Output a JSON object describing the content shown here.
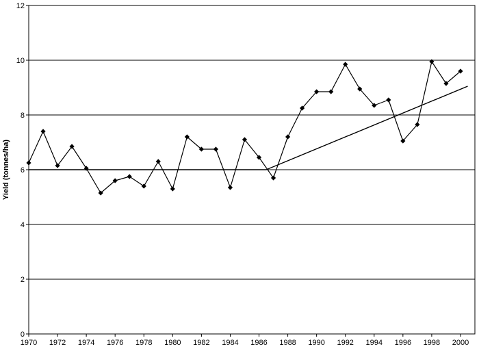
{
  "chart_data": {
    "type": "line",
    "title": "",
    "xlabel": "",
    "ylabel": "Yield (tonnes/ha)",
    "xlim": [
      1970,
      2001
    ],
    "ylim": [
      0,
      12
    ],
    "yticks": [
      0,
      2,
      4,
      6,
      8,
      10,
      12
    ],
    "xticks": [
      1970,
      1972,
      1974,
      1976,
      1978,
      1980,
      1982,
      1984,
      1986,
      1988,
      1990,
      1992,
      1994,
      1996,
      1998,
      2000
    ],
    "grid": "horizontal",
    "legend": "none",
    "series": [
      {
        "style": "line-with-diamond-markers",
        "color": "#000000",
        "x": [
          1970,
          1971,
          1972,
          1973,
          1974,
          1975,
          1976,
          1977,
          1978,
          1979,
          1980,
          1981,
          1982,
          1983,
          1984,
          1985,
          1986,
          1987,
          1988,
          1989,
          1990,
          1991,
          1992,
          1993,
          1994,
          1995,
          1996,
          1997,
          1998,
          1999,
          2000
        ],
        "values": [
          6.25,
          7.4,
          6.15,
          6.85,
          6.05,
          5.15,
          5.6,
          5.75,
          5.4,
          6.3,
          5.3,
          7.2,
          6.75,
          6.75,
          5.35,
          7.1,
          6.45,
          5.7,
          7.2,
          8.25,
          8.85,
          8.85,
          9.85,
          8.95,
          8.35,
          8.55,
          7.05,
          7.65,
          9.95,
          9.15,
          9.6
        ]
      },
      {
        "style": "trend-line",
        "color": "#000000",
        "x": [
          1970,
          1986.5,
          2000.5
        ],
        "values": [
          6.0,
          6.0,
          9.05
        ]
      }
    ]
  }
}
